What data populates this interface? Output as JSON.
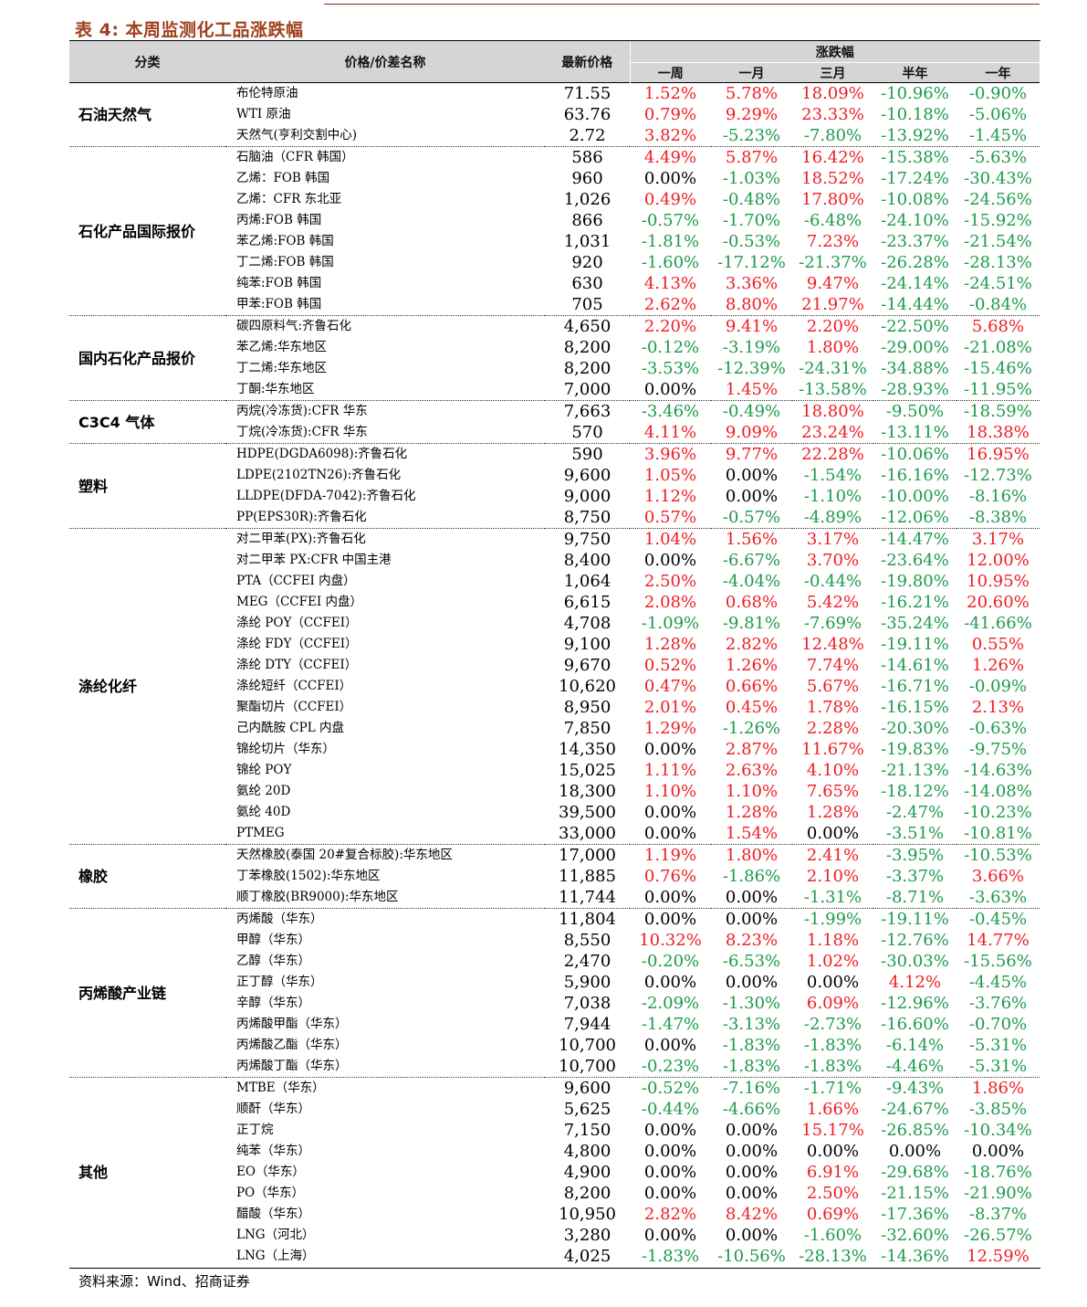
{
  "title": "表 4:  本周监测化工品涨跌幅",
  "headers": {
    "category": "分类",
    "name": "价格/价差名称",
    "price": "最新价格",
    "change_group": "涨跌幅",
    "periods": [
      "一周",
      "一月",
      "三月",
      "半年",
      "一年"
    ]
  },
  "colors": {
    "up": "#ee1d23",
    "down": "#1d9a4a",
    "flat": "#000000",
    "title": "#a0401f"
  },
  "groups": [
    {
      "category": "石油天然气",
      "rows": [
        {
          "name": "布伦特原油",
          "price": "71.55",
          "changes": [
            "1.52%",
            "5.78%",
            "18.09%",
            "-10.96%",
            "-0.90%"
          ]
        },
        {
          "name": "WTI 原油",
          "price": "63.76",
          "changes": [
            "0.79%",
            "9.29%",
            "23.33%",
            "-10.18%",
            "-5.06%"
          ]
        },
        {
          "name": "天然气(亨利交割中心)",
          "price": "2.72",
          "changes": [
            "3.82%",
            "-5.23%",
            "-7.80%",
            "-13.92%",
            "-1.45%"
          ]
        }
      ]
    },
    {
      "category": "石化产品国际报价",
      "rows": [
        {
          "name": "石脑油（CFR 韩国）",
          "price": "586",
          "changes": [
            "4.49%",
            "5.87%",
            "16.42%",
            "-15.38%",
            "-5.63%"
          ]
        },
        {
          "name": "乙烯：FOB 韩国",
          "price": "960",
          "changes": [
            "0.00%",
            "-1.03%",
            "18.52%",
            "-17.24%",
            "-30.43%"
          ]
        },
        {
          "name": "乙烯：CFR 东北亚",
          "price": "1,026",
          "changes": [
            "0.49%",
            "-0.48%",
            "17.80%",
            "-10.08%",
            "-24.56%"
          ]
        },
        {
          "name": "丙烯:FOB 韩国",
          "price": "866",
          "changes": [
            "-0.57%",
            "-1.70%",
            "-6.48%",
            "-24.10%",
            "-15.92%"
          ]
        },
        {
          "name": "苯乙烯:FOB 韩国",
          "price": "1,031",
          "changes": [
            "-1.81%",
            "-0.53%",
            "7.23%",
            "-23.37%",
            "-21.54%"
          ]
        },
        {
          "name": "丁二烯:FOB 韩国",
          "price": "920",
          "changes": [
            "-1.60%",
            "-17.12%",
            "-21.37%",
            "-26.28%",
            "-28.13%"
          ]
        },
        {
          "name": "纯苯:FOB 韩国",
          "price": "630",
          "changes": [
            "4.13%",
            "3.36%",
            "9.47%",
            "-24.14%",
            "-24.51%"
          ]
        },
        {
          "name": "甲苯:FOB 韩国",
          "price": "705",
          "changes": [
            "2.62%",
            "8.80%",
            "21.97%",
            "-14.44%",
            "-0.84%"
          ]
        }
      ]
    },
    {
      "category": "国内石化产品报价",
      "rows": [
        {
          "name": "碳四原料气:齐鲁石化",
          "price": "4,650",
          "changes": [
            "2.20%",
            "9.41%",
            "2.20%",
            "-22.50%",
            "5.68%"
          ]
        },
        {
          "name": "苯乙烯:华东地区",
          "price": "8,200",
          "changes": [
            "-0.12%",
            "-3.19%",
            "1.80%",
            "-29.00%",
            "-21.08%"
          ]
        },
        {
          "name": "丁二烯:华东地区",
          "price": "8,200",
          "changes": [
            "-3.53%",
            "-12.39%",
            "-24.31%",
            "-34.88%",
            "-15.46%"
          ]
        },
        {
          "name": "丁酮:华东地区",
          "price": "7,000",
          "changes": [
            "0.00%",
            "1.45%",
            "-13.58%",
            "-28.93%",
            "-11.95%"
          ]
        }
      ]
    },
    {
      "category": "C3C4 气体",
      "rows": [
        {
          "name": "丙烷(冷冻货):CFR 华东",
          "price": "7,663",
          "changes": [
            "-3.46%",
            "-0.49%",
            "18.80%",
            "-9.50%",
            "-18.59%"
          ]
        },
        {
          "name": "丁烷(冷冻货):CFR 华东",
          "price": "570",
          "changes": [
            "4.11%",
            "9.09%",
            "23.24%",
            "-13.11%",
            "18.38%"
          ]
        }
      ]
    },
    {
      "category": "塑料",
      "rows": [
        {
          "name": "HDPE(DGDA6098):齐鲁石化",
          "price": "590",
          "changes": [
            "3.96%",
            "9.77%",
            "22.28%",
            "-10.06%",
            "16.95%"
          ]
        },
        {
          "name": "LDPE(2102TN26):齐鲁石化",
          "price": "9,600",
          "changes": [
            "1.05%",
            "0.00%",
            "-1.54%",
            "-16.16%",
            "-12.73%"
          ]
        },
        {
          "name": "LLDPE(DFDA-7042):齐鲁石化",
          "price": "9,000",
          "changes": [
            "1.12%",
            "0.00%",
            "-1.10%",
            "-10.00%",
            "-8.16%"
          ]
        },
        {
          "name": "PP(EPS30R):齐鲁石化",
          "price": "8,750",
          "changes": [
            "0.57%",
            "-0.57%",
            "-4.89%",
            "-12.06%",
            "-8.38%"
          ]
        }
      ]
    },
    {
      "category": "涤纶化纤",
      "rows": [
        {
          "name": "对二甲苯(PX):齐鲁石化",
          "price": "9,750",
          "changes": [
            "1.04%",
            "1.56%",
            "3.17%",
            "-14.47%",
            "3.17%"
          ]
        },
        {
          "name": "对二甲苯 PX:CFR 中国主港",
          "price": "8,400",
          "changes": [
            "0.00%",
            "-6.67%",
            "3.70%",
            "-23.64%",
            "12.00%"
          ]
        },
        {
          "name": "PTA（CCFEI 内盘）",
          "price": "1,064",
          "changes": [
            "2.50%",
            "-4.04%",
            "-0.44%",
            "-19.80%",
            "10.95%"
          ]
        },
        {
          "name": "MEG（CCFEI 内盘）",
          "price": "6,615",
          "changes": [
            "2.08%",
            "0.68%",
            "5.42%",
            "-16.21%",
            "20.60%"
          ]
        },
        {
          "name": "涤纶 POY（CCFEI）",
          "price": "4,708",
          "changes": [
            "-1.09%",
            "-9.81%",
            "-7.69%",
            "-35.24%",
            "-41.66%"
          ]
        },
        {
          "name": "涤纶 FDY（CCFEI）",
          "price": "9,100",
          "changes": [
            "1.28%",
            "2.82%",
            "12.48%",
            "-19.11%",
            "0.55%"
          ]
        },
        {
          "name": "涤纶 DTY（CCFEI）",
          "price": "9,670",
          "changes": [
            "0.52%",
            "1.26%",
            "7.74%",
            "-14.61%",
            "1.26%"
          ]
        },
        {
          "name": "涤纶短纤（CCFEI）",
          "price": "10,620",
          "changes": [
            "0.47%",
            "0.66%",
            "5.67%",
            "-16.71%",
            "-0.09%"
          ]
        },
        {
          "name": "聚酯切片（CCFEI）",
          "price": "8,950",
          "changes": [
            "2.01%",
            "0.45%",
            "1.78%",
            "-16.15%",
            "2.13%"
          ]
        },
        {
          "name": "己内酰胺 CPL 内盘",
          "price": "7,850",
          "changes": [
            "1.29%",
            "-1.26%",
            "2.28%",
            "-20.30%",
            "-0.63%"
          ]
        },
        {
          "name": "锦纶切片（华东）",
          "price": "14,350",
          "changes": [
            "0.00%",
            "2.87%",
            "11.67%",
            "-19.83%",
            "-9.75%"
          ]
        },
        {
          "name": "锦纶 POY",
          "price": "15,025",
          "changes": [
            "1.11%",
            "2.63%",
            "4.10%",
            "-21.13%",
            "-14.63%"
          ]
        },
        {
          "name": "氨纶 20D",
          "price": "18,300",
          "changes": [
            "1.10%",
            "1.10%",
            "7.65%",
            "-18.12%",
            "-14.08%"
          ]
        },
        {
          "name": "氨纶 40D",
          "price": "39,500",
          "changes": [
            "0.00%",
            "1.28%",
            "1.28%",
            "-2.47%",
            "-10.23%"
          ]
        },
        {
          "name": "PTMEG",
          "price": "33,000",
          "changes": [
            "0.00%",
            "1.54%",
            "0.00%",
            "-3.51%",
            "-10.81%"
          ]
        }
      ]
    },
    {
      "category": "橡胶",
      "rows": [
        {
          "name": "天然橡胶(泰国 20#复合标胶):华东地区",
          "price": "17,000",
          "changes": [
            "1.19%",
            "1.80%",
            "2.41%",
            "-3.95%",
            "-10.53%"
          ]
        },
        {
          "name": "丁苯橡胶(1502):华东地区",
          "price": "11,885",
          "changes": [
            "0.76%",
            "-1.86%",
            "2.10%",
            "-3.37%",
            "3.66%"
          ]
        },
        {
          "name": "顺丁橡胶(BR9000):华东地区",
          "price": "11,744",
          "changes": [
            "0.00%",
            "0.00%",
            "-1.31%",
            "-8.71%",
            "-3.63%"
          ]
        }
      ]
    },
    {
      "category": "丙烯酸产业链",
      "rows": [
        {
          "name": "丙烯酸（华东）",
          "price": "11,804",
          "changes": [
            "0.00%",
            "0.00%",
            "-1.99%",
            "-19.11%",
            "-0.45%"
          ]
        },
        {
          "name": "甲醇（华东）",
          "price": "8,550",
          "changes": [
            "10.32%",
            "8.23%",
            "1.18%",
            "-12.76%",
            "14.77%"
          ]
        },
        {
          "name": "乙醇（华东）",
          "price": "2,470",
          "changes": [
            "-0.20%",
            "-6.53%",
            "1.02%",
            "-30.03%",
            "-15.56%"
          ]
        },
        {
          "name": "正丁醇（华东）",
          "price": "5,900",
          "changes": [
            "0.00%",
            "0.00%",
            "0.00%",
            "4.12%",
            "-4.45%"
          ]
        },
        {
          "name": "辛醇（华东）",
          "price": "7,038",
          "changes": [
            "-2.09%",
            "-1.30%",
            "6.09%",
            "-12.96%",
            "-3.76%"
          ]
        },
        {
          "name": "丙烯酸甲酯（华东）",
          "price": "7,944",
          "changes": [
            "-1.47%",
            "-3.13%",
            "-2.73%",
            "-16.60%",
            "-0.70%"
          ]
        },
        {
          "name": "丙烯酸乙酯（华东）",
          "price": "10,700",
          "changes": [
            "0.00%",
            "-1.83%",
            "-1.83%",
            "-6.14%",
            "-5.31%"
          ]
        },
        {
          "name": "丙烯酸丁酯（华东）",
          "price": "10,700",
          "changes": [
            "-0.23%",
            "-1.83%",
            "-1.83%",
            "-4.46%",
            "-5.31%"
          ]
        }
      ]
    },
    {
      "category": "其他",
      "rows": [
        {
          "name": "MTBE（华东）",
          "price": "9,600",
          "changes": [
            "-0.52%",
            "-7.16%",
            "-1.71%",
            "-9.43%",
            "1.86%"
          ]
        },
        {
          "name": "顺酐（华东）",
          "price": "5,625",
          "changes": [
            "-0.44%",
            "-4.66%",
            "1.66%",
            "-24.67%",
            "-3.85%"
          ]
        },
        {
          "name": "正丁烷",
          "price": "7,150",
          "changes": [
            "0.00%",
            "0.00%",
            "15.17%",
            "-26.85%",
            "-10.34%"
          ]
        },
        {
          "name": "纯苯（华东）",
          "price": "4,800",
          "changes": [
            "0.00%",
            "0.00%",
            "0.00%",
            "0.00%",
            "0.00%"
          ]
        },
        {
          "name": "EO（华东）",
          "price": "4,900",
          "changes": [
            "0.00%",
            "0.00%",
            "6.91%",
            "-29.68%",
            "-18.76%"
          ]
        },
        {
          "name": "PO（华东）",
          "price": "8,200",
          "changes": [
            "0.00%",
            "0.00%",
            "2.50%",
            "-21.15%",
            "-21.90%"
          ]
        },
        {
          "name": "醋酸（华东）",
          "price": "10,950",
          "changes": [
            "2.82%",
            "8.42%",
            "0.69%",
            "-17.36%",
            "-8.37%"
          ]
        },
        {
          "name": "LNG（河北）",
          "price": "3,280",
          "changes": [
            "0.00%",
            "0.00%",
            "-1.60%",
            "-32.60%",
            "-26.57%"
          ]
        },
        {
          "name": "LNG（上海）",
          "price": "4,025",
          "changes": [
            "-1.83%",
            "-10.56%",
            "-28.13%",
            "-14.36%",
            "12.59%"
          ]
        }
      ]
    }
  ],
  "source": "资料来源：Wind、招商证券"
}
